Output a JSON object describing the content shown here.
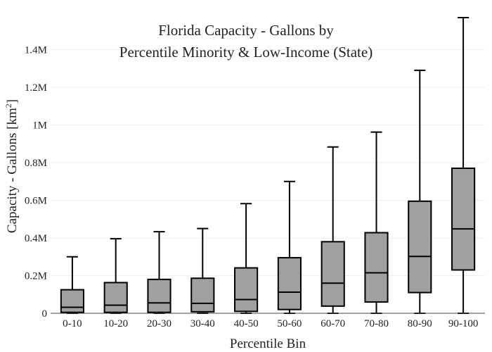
{
  "chart_data": {
    "type": "box",
    "title_lines": [
      "Florida Capacity - Gallons by",
      "Percentile Minority & Low-Income (State)"
    ],
    "xlabel": "Percentile Bin",
    "ylabel_main": "Capacity - Gallons  [km",
    "ylabel_sup": "2",
    "ylabel_end": "]",
    "ylim": [
      0,
      1570000
    ],
    "yticks": [
      0,
      200000,
      400000,
      600000,
      800000,
      1000000,
      1200000,
      1400000
    ],
    "ytick_labels": [
      "0",
      "0.2M",
      "0.4M",
      "0.6M",
      "0.8M",
      "1M",
      "1.2M",
      "1.4M"
    ],
    "grid": true,
    "box_color": "#a0a0a0",
    "line_color": "#000000",
    "categories": [
      "0-10",
      "10-20",
      "20-30",
      "30-40",
      "40-50",
      "50-60",
      "60-70",
      "70-80",
      "80-90",
      "90-100"
    ],
    "boxes": [
      {
        "min": 0,
        "q1": 5000,
        "median": 32000,
        "q3": 125000,
        "max": 300000
      },
      {
        "min": 0,
        "q1": 5000,
        "median": 43000,
        "q3": 163000,
        "max": 396000
      },
      {
        "min": 0,
        "q1": 5000,
        "median": 55000,
        "q3": 180000,
        "max": 433000
      },
      {
        "min": 0,
        "q1": 8000,
        "median": 53000,
        "q3": 186000,
        "max": 450000
      },
      {
        "min": 0,
        "q1": 10000,
        "median": 73000,
        "q3": 241000,
        "max": 582000
      },
      {
        "min": 0,
        "q1": 20000,
        "median": 112000,
        "q3": 295000,
        "max": 700000
      },
      {
        "min": 0,
        "q1": 38000,
        "median": 160000,
        "q3": 380000,
        "max": 883000
      },
      {
        "min": 0,
        "q1": 60000,
        "median": 215000,
        "q3": 428000,
        "max": 962000
      },
      {
        "min": 0,
        "q1": 110000,
        "median": 302000,
        "q3": 595000,
        "max": 1290000
      },
      {
        "min": 0,
        "q1": 230000,
        "median": 448000,
        "q3": 770000,
        "max": 1570000
      }
    ]
  }
}
